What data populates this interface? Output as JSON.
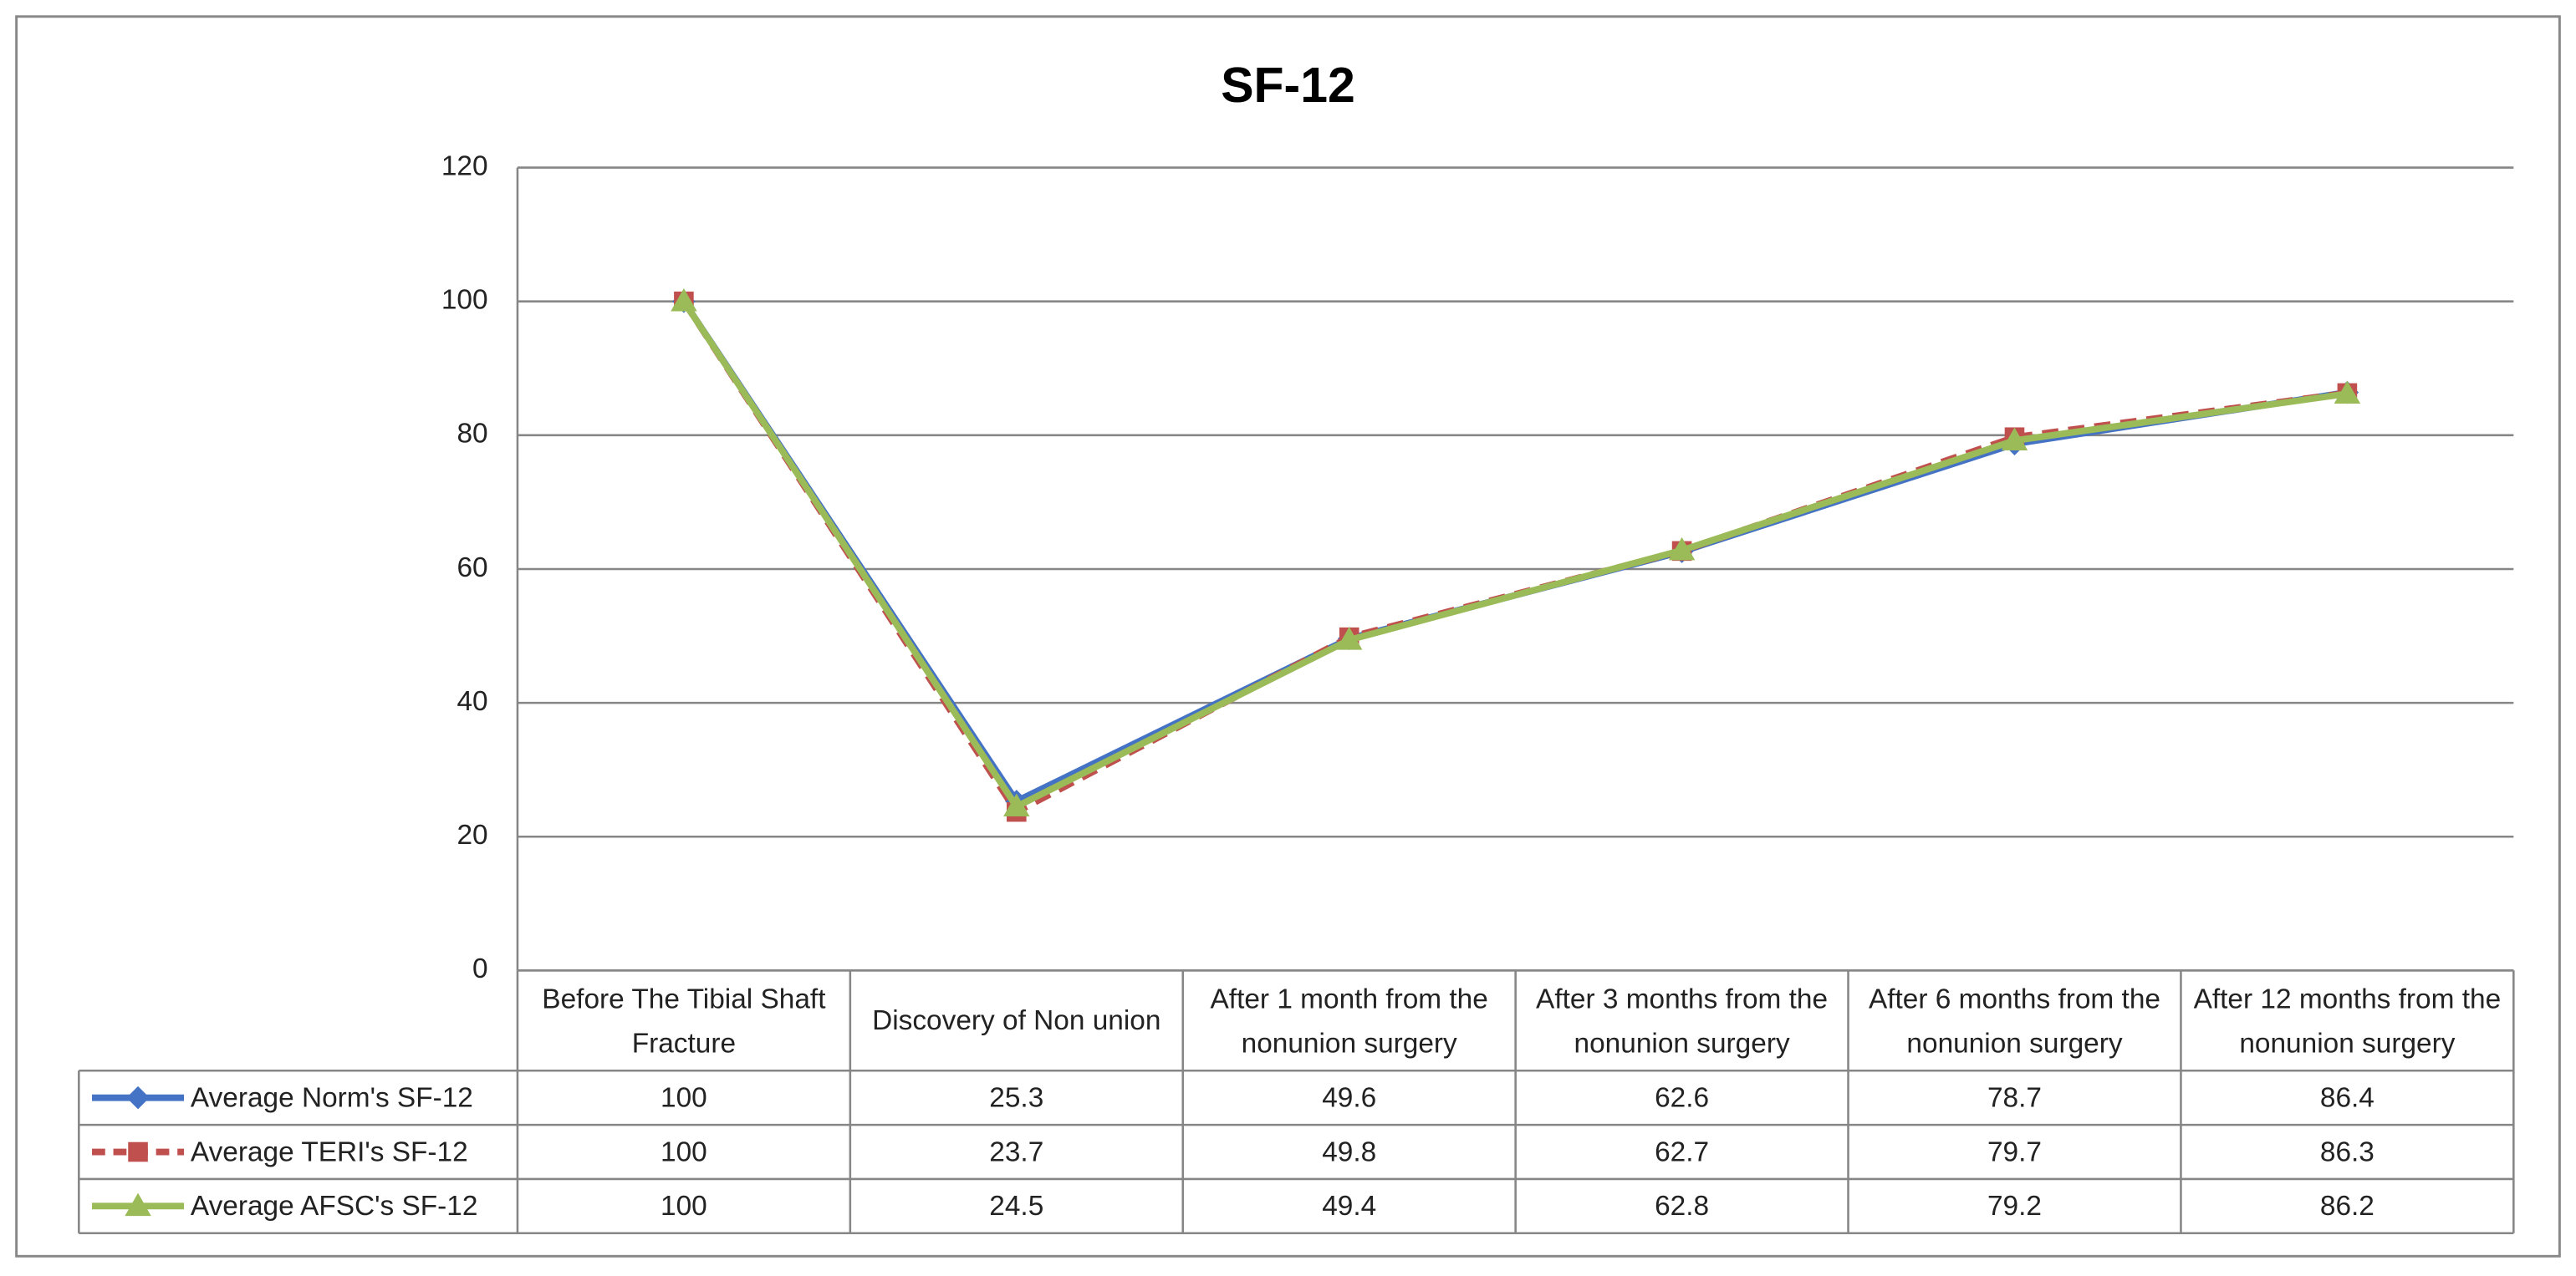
{
  "chart_data": {
    "type": "line",
    "title": "SF-12",
    "categories": [
      "Before The Tibial Shaft Fracture",
      "Discovery of Non union",
      "After 1 month from the nonunion surgery",
      "After 3 months from the nonunion surgery",
      "After 6 months from the nonunion surgery",
      "After 12 months from the nonunion surgery"
    ],
    "series": [
      {
        "name": "Average Norm's SF-12",
        "color": "#4472c4",
        "marker": "diamond",
        "line_style": "solid",
        "values": [
          100,
          25.3,
          49.6,
          62.6,
          78.7,
          86.4
        ]
      },
      {
        "name": "Average TERI's SF-12",
        "color": "#c0504d",
        "marker": "square",
        "line_style": "dashed",
        "values": [
          100,
          23.7,
          49.8,
          62.7,
          79.7,
          86.3
        ]
      },
      {
        "name": "Average AFSC's SF-12",
        "color": "#9bbb59",
        "marker": "triangle",
        "line_style": "solid",
        "values": [
          100,
          24.5,
          49.4,
          62.8,
          79.2,
          86.2
        ]
      }
    ],
    "ylim": [
      0,
      120
    ],
    "yticks": [
      0,
      20,
      40,
      60,
      80,
      100,
      120
    ],
    "grid": true,
    "data_table": true
  }
}
